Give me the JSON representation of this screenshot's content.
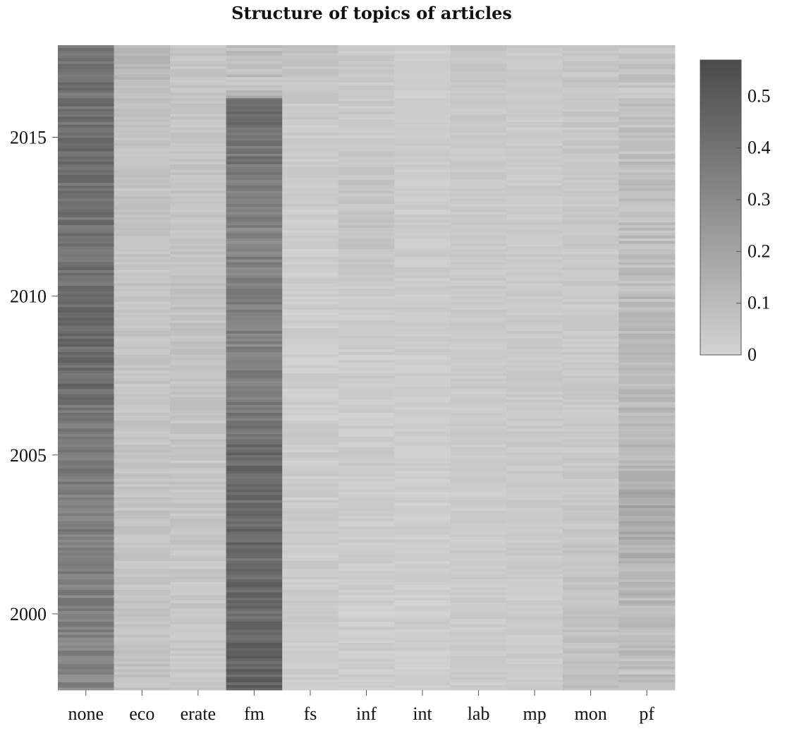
{
  "chart_data": {
    "type": "heatmap",
    "title": "Structure of topics of articles",
    "xlabel": "",
    "ylabel": "",
    "categories": [
      "none",
      "eco",
      "erate",
      "fm",
      "fs",
      "inf",
      "int",
      "lab",
      "mp",
      "mon",
      "pf"
    ],
    "y_range": [
      1997.6,
      2017.9
    ],
    "y_ticks": [
      2000,
      2005,
      2010,
      2015
    ],
    "color_scale": {
      "min": 0,
      "max": 0.57,
      "low_color": "#d3d3d3",
      "high_color": "#4a4a4a",
      "ticks": [
        0,
        0.1,
        0.2,
        0.3,
        0.4,
        0.5
      ]
    },
    "column_profiles": [
      {
        "name": "none",
        "points": [
          [
            1997.6,
            0.32
          ],
          [
            2000,
            0.34
          ],
          [
            2005,
            0.36
          ],
          [
            2008,
            0.44
          ],
          [
            2010,
            0.42
          ],
          [
            2012,
            0.4
          ],
          [
            2015,
            0.42
          ],
          [
            2017.9,
            0.4
          ]
        ],
        "spread": 0.06
      },
      {
        "name": "eco",
        "points": [
          [
            1997.6,
            0.07
          ],
          [
            2005,
            0.06
          ],
          [
            2010,
            0.06
          ],
          [
            2015,
            0.07
          ],
          [
            2017.9,
            0.12
          ]
        ],
        "spread": 0.03
      },
      {
        "name": "erate",
        "points": [
          [
            1997.6,
            0.04
          ],
          [
            2005,
            0.06
          ],
          [
            2010,
            0.07
          ],
          [
            2015,
            0.06
          ],
          [
            2017.9,
            0.06
          ]
        ],
        "spread": 0.03
      },
      {
        "name": "fm",
        "points": [
          [
            1997.6,
            0.47
          ],
          [
            2000,
            0.44
          ],
          [
            2005,
            0.43
          ],
          [
            2008,
            0.33
          ],
          [
            2010,
            0.35
          ],
          [
            2012,
            0.32
          ],
          [
            2015,
            0.4
          ],
          [
            2016.2,
            0.44
          ],
          [
            2016.3,
            0.08
          ],
          [
            2017.9,
            0.08
          ]
        ],
        "spread": 0.06
      },
      {
        "name": "fs",
        "points": [
          [
            1997.6,
            0.03
          ],
          [
            2005,
            0.03
          ],
          [
            2010,
            0.02
          ],
          [
            2015,
            0.03
          ],
          [
            2017.9,
            0.07
          ]
        ],
        "spread": 0.025
      },
      {
        "name": "inf",
        "points": [
          [
            1997.6,
            0.02
          ],
          [
            2005,
            0.03
          ],
          [
            2010,
            0.03
          ],
          [
            2012,
            0.07
          ],
          [
            2015,
            0.04
          ],
          [
            2017.9,
            0.04
          ]
        ],
        "spread": 0.025
      },
      {
        "name": "int",
        "points": [
          [
            1997.6,
            0.02
          ],
          [
            2005,
            0.02
          ],
          [
            2010,
            0.03
          ],
          [
            2015,
            0.03
          ],
          [
            2017.9,
            0.02
          ]
        ],
        "spread": 0.02
      },
      {
        "name": "lab",
        "points": [
          [
            1997.6,
            0.03
          ],
          [
            2005,
            0.03
          ],
          [
            2010,
            0.04
          ],
          [
            2015,
            0.04
          ],
          [
            2017.9,
            0.06
          ]
        ],
        "spread": 0.02
      },
      {
        "name": "mp",
        "points": [
          [
            1997.6,
            0.03
          ],
          [
            2005,
            0.04
          ],
          [
            2010,
            0.04
          ],
          [
            2015,
            0.03
          ],
          [
            2017.9,
            0.04
          ]
        ],
        "spread": 0.02
      },
      {
        "name": "mon",
        "points": [
          [
            1997.6,
            0.08
          ],
          [
            2005,
            0.04
          ],
          [
            2010,
            0.04
          ],
          [
            2015,
            0.05
          ],
          [
            2017.9,
            0.05
          ]
        ],
        "spread": 0.025
      },
      {
        "name": "pf",
        "points": [
          [
            1997.6,
            0.08
          ],
          [
            2000,
            0.1
          ],
          [
            2002,
            0.14
          ],
          [
            2003.5,
            0.18
          ],
          [
            2005,
            0.11
          ],
          [
            2010,
            0.09
          ],
          [
            2015,
            0.08
          ],
          [
            2017.9,
            0.06
          ]
        ],
        "spread": 0.05
      }
    ]
  }
}
